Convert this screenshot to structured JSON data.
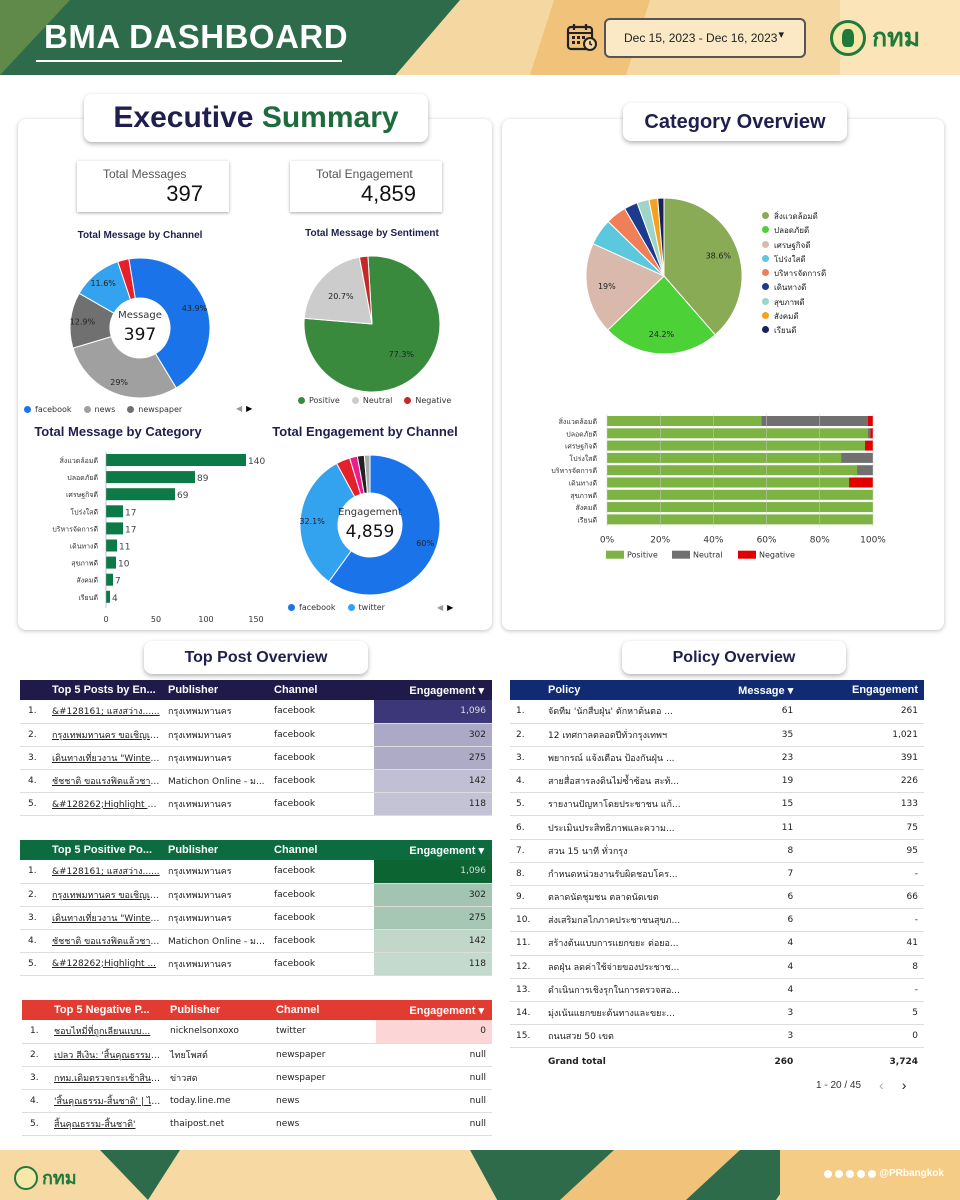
{
  "header": {
    "title": "BMA DASHBOARD",
    "date_range": "Dec 15, 2023 - Dec 16, 2023",
    "logo_text": "กทม"
  },
  "footer": {
    "logo_text": "กทม",
    "handle": "@PRbangkok"
  },
  "exec": {
    "title_a": "Executive",
    "title_b": "Summary",
    "kpi_messages_label": "Total Messages",
    "kpi_messages_value": "397",
    "kpi_engagement_label": "Total Engagement",
    "kpi_engagement_value": "4,859"
  },
  "category_overview": {
    "title": "Category Overview"
  },
  "top_post": {
    "title": "Top Post Overview"
  },
  "policy_overview": {
    "title": "Policy Overview"
  },
  "colors": {
    "green": "#3a8a3e",
    "grey": "#cccccc",
    "red": "#c62828",
    "blue": "#1a73e8",
    "lightblue": "#33a3f0",
    "purple_head": "#1f1a4a",
    "green_head": "#0c6b3f",
    "red_head": "#e23c32",
    "navy_head": "#102a74"
  },
  "chart_data": [
    {
      "type": "pie",
      "title": "Total Message by Channel",
      "center_label": "Message",
      "center_value": "397",
      "categories": [
        "facebook",
        "news",
        "newspaper",
        "twitter",
        "other"
      ],
      "values": [
        43.9,
        29,
        12.9,
        11.6,
        2.6
      ],
      "labels": [
        "43.9%",
        "29%",
        "12.9%",
        "11.6%",
        ""
      ],
      "colors": [
        "#1a73e8",
        "#a0a0a0",
        "#707070",
        "#33a3f0",
        "#e5202b"
      ],
      "legend": [
        "facebook",
        "news",
        "newspaper"
      ],
      "legend_colors": [
        "#1a73e8",
        "#a0a0a0",
        "#707070"
      ]
    },
    {
      "type": "pie",
      "title": "Total Message by Sentiment",
      "categories": [
        "Positive",
        "Neutral",
        "Negative"
      ],
      "values": [
        77.3,
        20.7,
        2.0
      ],
      "labels": [
        "77.3%",
        "20.7%",
        ""
      ],
      "colors": [
        "#3a8a3e",
        "#cccccc",
        "#c62828"
      ],
      "legend": [
        "Positive",
        "Neutral",
        "Negative"
      ]
    },
    {
      "type": "bar",
      "title": "Total Message by Category",
      "categories": [
        "สิ่งแวดล้อมดี",
        "ปลอดภัยดี",
        "เศรษฐกิจดี",
        "โปร่งใสดี",
        "บริหารจัดการดี",
        "เดินทางดี",
        "สุขภาพดี",
        "สังคมดี",
        "เรียนดี"
      ],
      "values": [
        140,
        89,
        69,
        17,
        17,
        11,
        10,
        7,
        4
      ],
      "ticks": [
        "0",
        "50",
        "100",
        "150"
      ],
      "xlim": [
        0,
        150
      ]
    },
    {
      "type": "pie",
      "title": "Total Engagement by Channel",
      "center_label": "Engagement",
      "center_value": "4,859",
      "categories": [
        "facebook",
        "twitter",
        "other1",
        "other2",
        "other3",
        "other4"
      ],
      "values": [
        60,
        32.1,
        3.2,
        1.8,
        1.6,
        1.3
      ],
      "labels": [
        "60%",
        "32.1%",
        "",
        "",
        "",
        ""
      ],
      "colors": [
        "#1a73e8",
        "#33a3f0",
        "#e5202b",
        "#e91e8c",
        "#222222",
        "#aaaaaa"
      ],
      "legend": [
        "facebook",
        "twitter"
      ],
      "legend_colors": [
        "#1a73e8",
        "#33a3f0"
      ]
    },
    {
      "type": "pie",
      "title": "Category Overview",
      "categories": [
        "สิ่งแวดล้อมดี",
        "ปลอดภัยดี",
        "เศรษฐกิจดี",
        "โปร่งใสดี",
        "บริหารจัดการดี",
        "เดินทางดี",
        "สุขภาพดี",
        "สังคมดี",
        "เรียนดี"
      ],
      "values": [
        38.6,
        24.2,
        19,
        5.5,
        4.3,
        2.8,
        2.5,
        1.8,
        1.3
      ],
      "labels": [
        "38.6%",
        "24.2%",
        "19%",
        "",
        "",
        "",
        "",
        "",
        ""
      ],
      "colors": [
        "#8aab55",
        "#4cd137",
        "#d9b9ab",
        "#5bc8de",
        "#f07e57",
        "#1d3a8f",
        "#9fd5c9",
        "#f2a21e",
        "#1b1f5a"
      ]
    },
    {
      "type": "bar",
      "title": "Sentiment by Category",
      "categories": [
        "สิ่งแวดล้อมดี",
        "ปลอดภัยดี",
        "เศรษฐกิจดี",
        "โปร่งใสดี",
        "บริหารจัดการดี",
        "เดินทางดี",
        "สุขภาพดี",
        "สังคมดี",
        "เรียนดี"
      ],
      "series": [
        {
          "name": "Positive",
          "values": [
            58,
            98,
            97,
            88,
            94,
            91,
            100,
            100,
            100
          ]
        },
        {
          "name": "Neutral",
          "values": [
            40,
            1,
            0,
            12,
            6,
            0,
            0,
            0,
            0
          ]
        },
        {
          "name": "Negative",
          "values": [
            2,
            1,
            3,
            0,
            0,
            9,
            0,
            0,
            0
          ]
        }
      ],
      "ticks": [
        "0%",
        "20%",
        "40%",
        "60%",
        "80%",
        "100%"
      ],
      "colors": [
        "#7cb342",
        "#707070",
        "#e00000"
      ]
    }
  ],
  "tables": {
    "top5": {
      "headers": [
        "Top 5 Posts by En...",
        "Publisher",
        "Channel",
        "Engagement ▾"
      ],
      "rows": [
        [
          "1.",
          "&#128161; แสงสว่าง......",
          "กรุงเทพมหานคร",
          "facebook",
          "1,096"
        ],
        [
          "2.",
          "กรุงเทพมหานคร ขอเชิญเที่...",
          "กรุงเทพมหานคร",
          "facebook",
          "302"
        ],
        [
          "3.",
          "เดินทางเที่ยวงาน \"Winter ...",
          "กรุงเทพมหานคร",
          "facebook",
          "275"
        ],
        [
          "4.",
          "ชัชชาติ ขอแรงฟิตแล้วชา ไม่...",
          "Matichon Online - ม...",
          "facebook",
          "142"
        ],
        [
          "5.",
          "&#128262;Highlight ง...",
          "กรุงเทพมหานคร",
          "facebook",
          "118"
        ]
      ]
    },
    "positive": {
      "headers": [
        "Top 5 Positive Po...",
        "Publisher",
        "Channel",
        "Engagement ▾"
      ],
      "rows": [
        [
          "1.",
          "&#128161; แสงสว่าง......",
          "กรุงเทพมหานคร",
          "facebook",
          "1,096"
        ],
        [
          "2.",
          "กรุงเทพมหานคร ขอเชิญเที่...",
          "กรุงเทพมหานคร",
          "facebook",
          "302"
        ],
        [
          "3.",
          "เดินทางเที่ยวงาน \"Winter...",
          "กรุงเทพมหานคร",
          "facebook",
          "275"
        ],
        [
          "4.",
          "ชัชชาติ ขอแรงฟิตแล้วชา ไ...",
          "Matichon Online - มติ...",
          "facebook",
          "142"
        ],
        [
          "5.",
          "&#128262;Highlight ...",
          "กรุงเทพมหานคร",
          "facebook",
          "118"
        ]
      ]
    },
    "negative": {
      "headers": [
        "Top 5 Negative P...",
        "Publisher",
        "Channel",
        "Engagement ▾"
      ],
      "rows": [
        [
          "1.",
          "ชอบไหมี่ที่ถูกเลียนแบบ...",
          "nicknelsonxoxo",
          "twitter",
          "0"
        ],
        [
          "2.",
          "เปลว สีเงิน: 'สิ้นคุณธรรม-สิ้...",
          "ไทยโพสต์",
          "newspaper",
          "null"
        ],
        [
          "3.",
          "กทม.เดิมตรวจกระเช้าสินค้า...",
          "ข่าวสด",
          "newspaper",
          "null"
        ],
        [
          "4.",
          "'สิ้นคุณธรรม-สิ้นชาติ' | ไทย...",
          "today.line.me",
          "news",
          "null"
        ],
        [
          "5.",
          "สิ้นคุณธรรม-สิ้นชาติ'",
          "thaipost.net",
          "news",
          "null"
        ]
      ]
    },
    "policy": {
      "headers": [
        "Policy",
        "Message ▾",
        "Engagement"
      ],
      "rows": [
        [
          "1.",
          "จัดทีม 'นักสืบฝุ่น' ตักหาต้นตอ ...",
          "61",
          "261"
        ],
        [
          "2.",
          "12 เทศกาลตลอดปีทั่วกรุงเทพฯ",
          "35",
          "1,021"
        ],
        [
          "3.",
          "พยากรณ์ แจ้งเตือน ป้องกันฝุ่น ...",
          "23",
          "391"
        ],
        [
          "4.",
          "สายสื่อสารลงดินไม่ซ้ำซ้อน สะท้...",
          "19",
          "226"
        ],
        [
          "5.",
          "รายงานปัญหาโดยประชาชน แก้...",
          "15",
          "133"
        ],
        [
          "6.",
          "ประเมินประสิทธิภาพและความ...",
          "11",
          "75"
        ],
        [
          "7.",
          "สวน 15 นาที ทั่วกรุง",
          "8",
          "95"
        ],
        [
          "8.",
          "กำหนดหน่วยงานรับผิดชอบโคร...",
          "7",
          "-"
        ],
        [
          "9.",
          "ตลาดนัดชุมชน ตลาดนัดเขต",
          "6",
          "66"
        ],
        [
          "10.",
          "ส่งเสริมกลไกภาคประชาชนสุขภ...",
          "6",
          "-"
        ],
        [
          "11.",
          "สร้างต้นแบบการแยกขยะ ต่อยอ...",
          "4",
          "41"
        ],
        [
          "12.",
          "ลดฝุ่น ลดค่าใช้จ่ายของประชาช...",
          "4",
          "8"
        ],
        [
          "13.",
          "ดำเนินการเชิงรุกในการตรวจสอ...",
          "4",
          "-"
        ],
        [
          "14.",
          "มุ่งเน้นแยกขยะต้นทางและขยะ...",
          "3",
          "5"
        ],
        [
          "15.",
          "ถนนสวย 50 เขต",
          "3",
          "0"
        ]
      ],
      "total": [
        "Grand total",
        "260",
        "3,724"
      ],
      "pager": "1 - 20 / 45"
    }
  }
}
